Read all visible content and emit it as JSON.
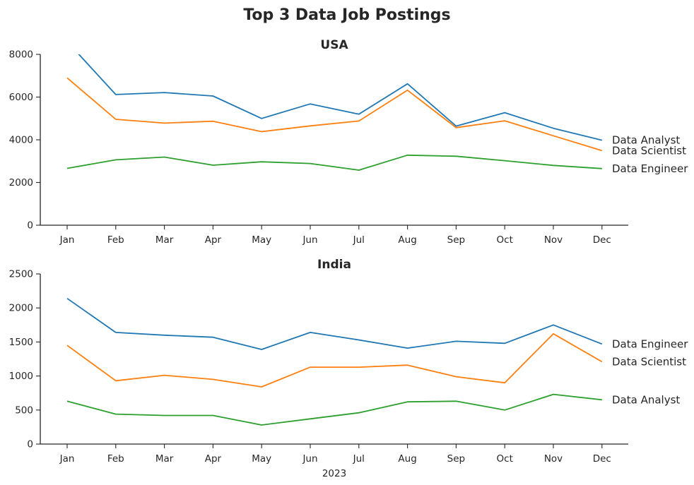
{
  "figure": {
    "title": "Top 3 Data Job Postings",
    "xlabel": "2023"
  },
  "chart_data": [
    {
      "type": "line",
      "title": "USA",
      "categories": [
        "Jan",
        "Feb",
        "Mar",
        "Apr",
        "May",
        "Jun",
        "Jul",
        "Aug",
        "Sep",
        "Oct",
        "Nov",
        "Dec"
      ],
      "ylim": [
        0,
        8000
      ],
      "yticks": [
        0,
        2000,
        4000,
        6000,
        8000
      ],
      "grid": false,
      "series": [
        {
          "name": "Data Analyst",
          "color": "#1f77b4",
          "values": [
            8600,
            6120,
            6210,
            6050,
            5000,
            5680,
            5200,
            6620,
            4640,
            5270,
            4540,
            3980
          ]
        },
        {
          "name": "Data Scientist",
          "color": "#ff7f0e",
          "values": [
            6900,
            4960,
            4780,
            4870,
            4380,
            4650,
            4880,
            6320,
            4570,
            4890,
            4190,
            3490
          ]
        },
        {
          "name": "Data Engineer",
          "color": "#2ca02c",
          "values": [
            2660,
            3060,
            3190,
            2810,
            2970,
            2890,
            2580,
            3280,
            3230,
            3020,
            2800,
            2650
          ]
        }
      ]
    },
    {
      "type": "line",
      "title": "India",
      "categories": [
        "Jan",
        "Feb",
        "Mar",
        "Apr",
        "May",
        "Jun",
        "Jul",
        "Aug",
        "Sep",
        "Oct",
        "Nov",
        "Dec"
      ],
      "ylim": [
        0,
        2500
      ],
      "yticks": [
        0,
        500,
        1000,
        1500,
        2000,
        2500
      ],
      "grid": false,
      "series": [
        {
          "name": "Data Engineer",
          "color": "#1f77b4",
          "values": [
            2140,
            1640,
            1600,
            1570,
            1390,
            1640,
            1530,
            1410,
            1510,
            1480,
            1750,
            1470
          ]
        },
        {
          "name": "Data Scientist",
          "color": "#ff7f0e",
          "values": [
            1450,
            930,
            1010,
            950,
            840,
            1130,
            1130,
            1160,
            990,
            900,
            1620,
            1210
          ]
        },
        {
          "name": "Data Analyst",
          "color": "#2ca02c",
          "values": [
            630,
            440,
            420,
            420,
            280,
            370,
            460,
            620,
            630,
            500,
            730,
            650
          ]
        }
      ]
    }
  ]
}
